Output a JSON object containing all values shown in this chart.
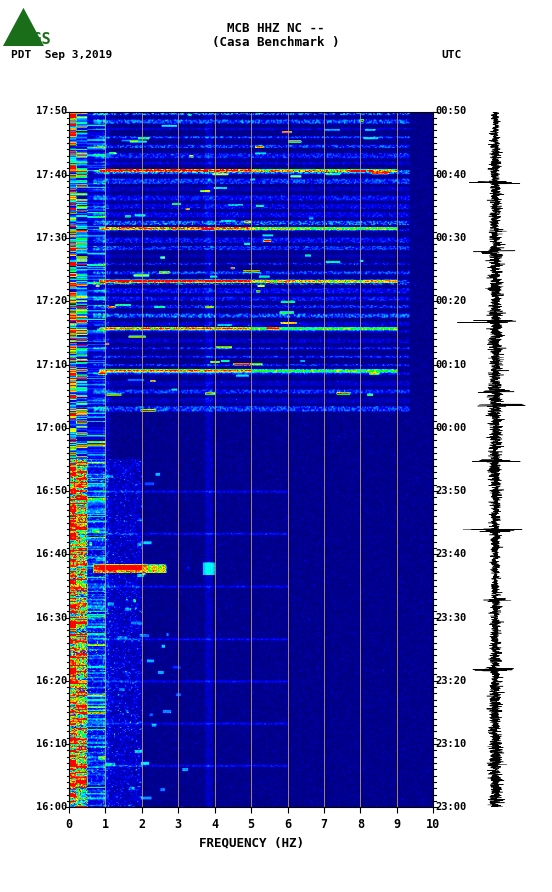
{
  "title_line1": "MCB HHZ NC --",
  "title_line2": "(Casa Benchmark )",
  "date_label": "PDT  Sep 3,2019",
  "utc_label": "UTC",
  "xlabel": "FREQUENCY (HZ)",
  "freq_min": 0,
  "freq_max": 10,
  "freq_ticks": [
    0,
    1,
    2,
    3,
    4,
    5,
    6,
    7,
    8,
    9,
    10
  ],
  "time_labels_left": [
    "16:00",
    "16:10",
    "16:20",
    "16:30",
    "16:40",
    "16:50",
    "17:00",
    "17:10",
    "17:20",
    "17:30",
    "17:40",
    "17:50"
  ],
  "time_labels_right": [
    "23:00",
    "23:10",
    "23:20",
    "23:30",
    "23:40",
    "23:50",
    "00:00",
    "00:10",
    "00:20",
    "00:30",
    "00:40",
    "00:50"
  ],
  "n_time_bins": 660,
  "n_freq_bins": 300,
  "background_color": "#ffffff",
  "vertical_lines_freq": [
    1.0,
    2.0,
    3.0,
    4.0,
    5.0,
    6.0,
    7.0,
    8.0,
    9.0
  ],
  "vline_color": "#c8a060",
  "usgs_green": "#1a6e1a"
}
